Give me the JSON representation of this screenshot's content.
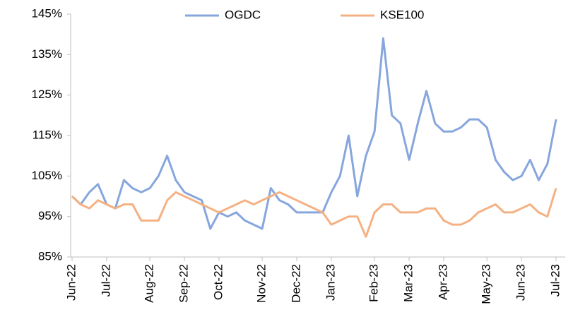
{
  "chart_data": {
    "type": "line",
    "categories": [
      "Jun-22",
      null,
      null,
      null,
      "Jul-22",
      null,
      null,
      null,
      null,
      "Aug-22",
      null,
      null,
      null,
      "Sep-22",
      null,
      null,
      null,
      "Oct-22",
      null,
      null,
      null,
      null,
      "Nov-22",
      null,
      null,
      null,
      "Dec-22",
      null,
      null,
      null,
      "Jan-23",
      null,
      null,
      null,
      null,
      "Feb-23",
      null,
      null,
      null,
      "Mar-23",
      null,
      null,
      null,
      "Apr-23",
      null,
      null,
      null,
      null,
      "May-23",
      null,
      null,
      null,
      "Jun-23",
      null,
      null,
      null,
      "Jul-23"
    ],
    "series": [
      {
        "name": "OGDC",
        "color": "#86a6dd",
        "values": [
          100,
          98,
          101,
          103,
          98,
          97,
          104,
          102,
          101,
          102,
          105,
          110,
          104,
          101,
          100,
          99,
          92,
          96,
          95,
          96,
          94,
          93,
          92,
          102,
          99,
          98,
          96,
          96,
          96,
          96,
          101,
          105,
          115,
          100,
          110,
          116,
          139,
          120,
          118,
          109,
          118,
          126,
          118,
          116,
          116,
          117,
          119,
          119,
          117,
          109,
          106,
          104,
          105,
          109,
          104,
          108,
          119
        ]
      },
      {
        "name": "KSE100",
        "color": "#f4b183",
        "values": [
          100,
          98,
          97,
          99,
          98,
          97,
          98,
          98,
          94,
          94,
          94,
          99,
          101,
          100,
          99,
          98,
          97,
          96,
          97,
          98,
          99,
          98,
          99,
          100,
          101,
          100,
          99,
          98,
          97,
          96,
          93,
          94,
          95,
          95,
          90,
          96,
          98,
          98,
          96,
          96,
          96,
          97,
          97,
          94,
          93,
          93,
          94,
          96,
          97,
          98,
          96,
          96,
          97,
          98,
          96,
          95,
          102
        ]
      }
    ],
    "ylim": [
      85,
      145
    ],
    "yticks": [
      {
        "value": 85,
        "label": "85%"
      },
      {
        "value": 95,
        "label": "95%"
      },
      {
        "value": 105,
        "label": "105%"
      },
      {
        "value": 115,
        "label": "115%"
      },
      {
        "value": 125,
        "label": "125%"
      },
      {
        "value": 135,
        "label": "135%"
      },
      {
        "value": 145,
        "label": "145%"
      }
    ],
    "grid": false,
    "legend": "top"
  }
}
